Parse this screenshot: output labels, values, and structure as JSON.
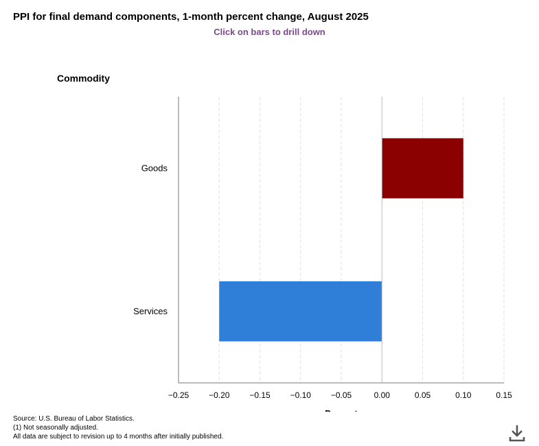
{
  "chart_data": {
    "type": "bar",
    "orientation": "horizontal",
    "title": "PPI for final demand components, 1-month percent change, August 2025",
    "subtitle": "Click on bars to drill down",
    "ylabel": "Commodity",
    "xlabel": "Percent",
    "categories": [
      "Goods",
      "Services"
    ],
    "values": [
      0.1,
      -0.2
    ],
    "colors": [
      "#8b0000",
      "#2f7ed8"
    ],
    "xlim": [
      -0.25,
      0.15
    ],
    "xticks": [
      -0.25,
      -0.2,
      -0.15,
      -0.1,
      -0.05,
      0.0,
      0.05,
      0.1,
      0.15
    ],
    "grid": true
  },
  "footnotes": [
    "Source: U.S. Bureau of Labor Statistics.",
    "(1) Not seasonally adjusted.",
    "All data are subject to revision up to 4 months after initially published."
  ],
  "download_icon": "download-icon"
}
